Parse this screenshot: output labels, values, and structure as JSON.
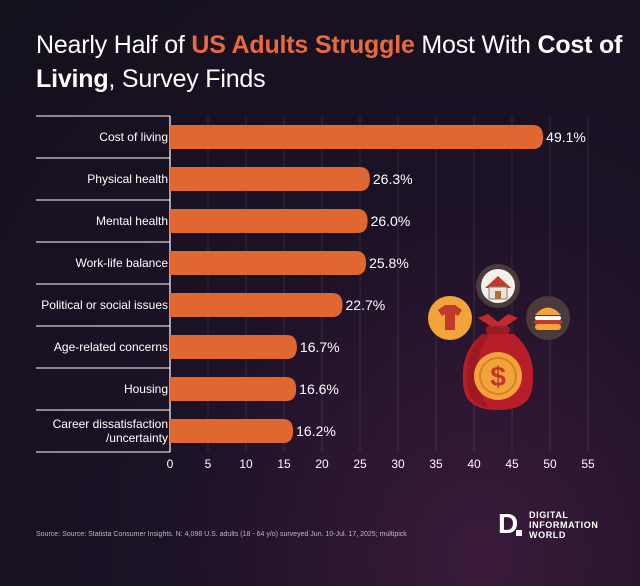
{
  "title": {
    "part1": "Nearly Half of ",
    "highlight": "US Adults Struggle",
    "part2": " Most With ",
    "bold": "Cost of Living",
    "part3": ", Survey Finds"
  },
  "chart_data": {
    "type": "bar",
    "orientation": "horizontal",
    "categories": [
      "Cost of living",
      "Physical health",
      "Mental health",
      "Work-life balance",
      "Political or social issues",
      "Age-related concerns",
      "Housing",
      [
        "Career dissatisfaction",
        "/uncertainty"
      ]
    ],
    "values": [
      49.1,
      26.3,
      26.0,
      25.8,
      22.7,
      16.7,
      16.6,
      16.2
    ],
    "value_labels": [
      "49.1%",
      "26.3%",
      "26.0%",
      "25.8%",
      "22.7%",
      "16.7%",
      "16.6%",
      "16.2%"
    ],
    "xticks": [
      0,
      5,
      10,
      15,
      20,
      25,
      30,
      35,
      40,
      45,
      50,
      55
    ],
    "xlim": [
      0,
      55
    ],
    "grid": true,
    "bar_color": "#e0672f"
  },
  "source": "Source: Source: Statista Consumer Insights. N: 4,098 U.S. adults (18 - 64 y/o) surveyed Jun. 10-Jul. 17, 2025; multipick",
  "logo": {
    "mark": "D",
    "line1": "DIGITAL",
    "line2": "INFORMATION",
    "line3": "WORLD"
  },
  "icons": [
    "money-bag-icon",
    "house-icon",
    "shirt-icon",
    "burger-icon",
    "dollar-icon"
  ],
  "colors": {
    "accent": "#e8693a",
    "bag": "#b81e2a",
    "coin": "#f2a33a",
    "icon_circle_dark": "#4a3a3a"
  }
}
